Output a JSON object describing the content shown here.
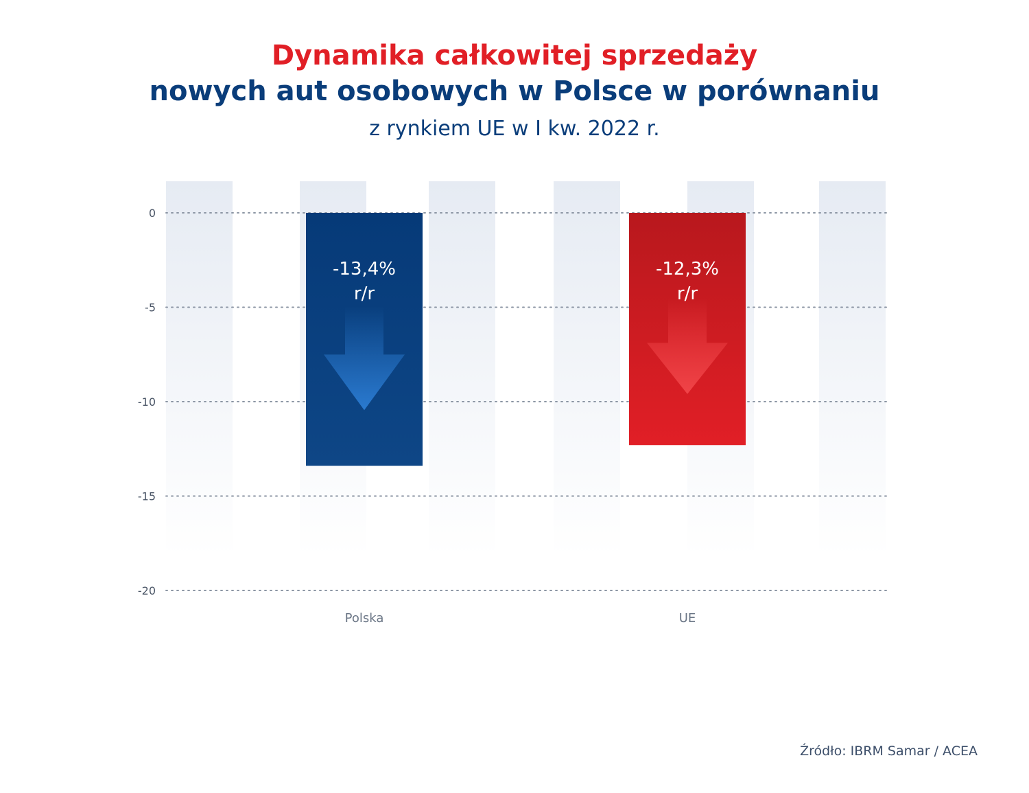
{
  "title_line1": "Dynamika całkowitej sprzedaży",
  "title_line2": "nowych aut osobowych w Polsce w porównaniu",
  "subtitle": "z rynkiem UE w I kw. 2022 r.",
  "source": "Źródło: IBRM Samar / ACEA",
  "colors": {
    "polska": "#0a3d7a",
    "ue": "#d51c22",
    "title_red": "#e11f26",
    "title_blue": "#0a3d7a"
  },
  "chart_data": {
    "type": "bar",
    "categories": [
      "Polska",
      "UE"
    ],
    "values": [
      -13.4,
      -12.3
    ],
    "labels": [
      {
        "line1": "-13,4%",
        "line2": "r/r"
      },
      {
        "line1": "-12,3%",
        "line2": "r/r"
      }
    ],
    "title": "Dynamika całkowitej sprzedaży nowych aut osobowych w Polsce w porównaniu",
    "subtitle": "z rynkiem UE w I kw. 2022 r.",
    "xlabel": "",
    "ylabel": "",
    "yticks": [
      0,
      -5,
      -10,
      -15,
      -20
    ],
    "ylim": [
      -20,
      0
    ],
    "grid": true,
    "legend": "none"
  }
}
